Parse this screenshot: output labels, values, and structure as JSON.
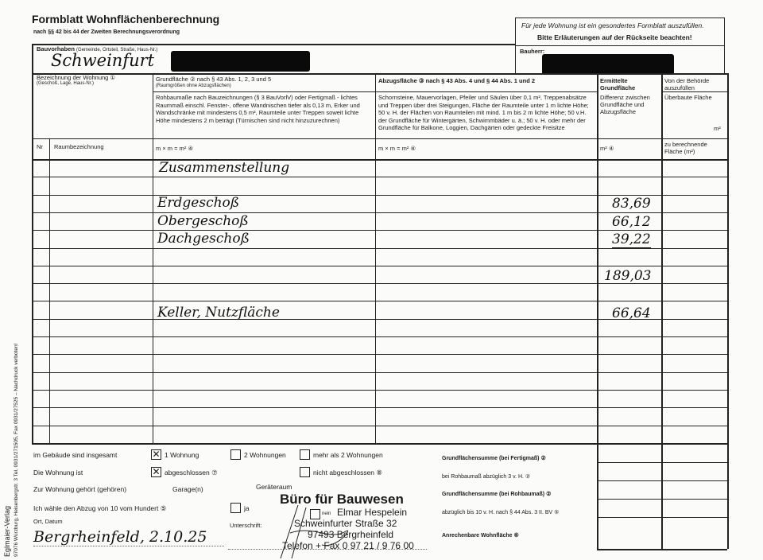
{
  "form": {
    "title": "Formblatt Wohnflächenberechnung",
    "subtitle": "nach §§ 42 bis 44 der Zweiten Berechnungsverordnung",
    "notice1": "Für jede Wohnung ist ein gesondertes Formblatt auszufüllen.",
    "notice2": "Bitte Erläuterungen auf der Rückseite beachten!",
    "bauvorhaben_label": "Bauvorhaben",
    "bauvorhaben_hint": "(Gemeinde, Ortsteil, Straße, Haus-Nr.)",
    "bauvorhaben_value": "Schweinfurt",
    "bauherr_label": "Bauherr:",
    "wohnung_label": "Bezeichnung der Wohnung ①",
    "wohnung_hint": "(Geschoß, Lage, Haus-Nr.)",
    "grundflaeche_label": "Grundfläche ② nach § 43 Abs. 1, 2, 3 und 5",
    "grundflaeche_hint": "(Raumgrößen ohne Abzugsflächen)",
    "rohbau_text": "Rohbaumaße nach Bauzeichnungen (§ 3 BauVorlV) oder Fertigmaß - lichtes Raummaß einschl. Fenster-, offene Wandnischen tiefer als 0,13 m, Erker und Wandschränke mit mindestens 0,5 m², Raumteile unter Treppen soweit lichte Höhe mindestens 2 m beträgt (Türnischen sind nicht hinzuzurechnen)",
    "abzug_label": "Abzugsfläche ③ nach § 43 Abs. 4 und § 44 Abs. 1 und 2",
    "abzug_text": "Schornsteine, Mauervorlagen, Pfeiler und Säulen über 0,1 m², Treppenabsätze und Treppen über drei Steigungen, Fläche der Raumteile unter 1 m lichte Höhe; 50 v. H. der Flächen von Raumteilen mit mind. 1 m bis 2 m lichte Höhe; 50 v.H. der Grundfläche für Wintergärten, Schwimmbäder u. ä.; 50 v. H. oder mehr der Grundfläche für Balkone, Loggien, Dachgärten oder gedeckte Freisitze",
    "ermittelt_label": "Ermittelte Grundfläche",
    "differenz_text": "Differenz zwischen Grundfläche und Abzugsfläche",
    "behoerde_label": "Von der Behörde auszufüllen",
    "ueberbaut_label": "Überbaute Fläche",
    "m2": "m²",
    "col_nr": "Nr",
    "col_raum": "Raumbezeichnung",
    "col_mxm1": "m × m = m² ④",
    "col_mxm2": "m × m = m² ④",
    "col_m2": "m² ④",
    "col_zu": "zu berechnende Fläche (m²)"
  },
  "rows": [
    {
      "name": "Zusammenstellung",
      "value": ""
    },
    {
      "name": "Erdgeschoß",
      "value": "83,69"
    },
    {
      "name": "Obergeschoß",
      "value": "66,12"
    },
    {
      "name": "Dachgeschoß",
      "value": "39,22"
    },
    {
      "name": "",
      "value": "189,03"
    },
    {
      "name": "Keller, Nutzfläche",
      "value": "66,64"
    }
  ],
  "bottom": {
    "gebaeude_label": "im Gebäude sind insgesamt",
    "opt1": "1 Wohnung",
    "opt2": "2 Wohnungen",
    "opt3": "mehr als 2 Wohnungen",
    "wohnung_ist": "Die Wohnung ist",
    "abgeschlossen": "abgeschlossen ⑦",
    "nicht_abgeschlossen": "nicht abgeschlossen ⑧",
    "gehoert": "Zur Wohnung gehört (gehören)",
    "garage": "Garage(n)",
    "geraeteraum": "Geräteraum",
    "abzug10": "Ich wähle den Abzug von 10 vom Hundert ⑤",
    "ja": "ja",
    "nein": "nein",
    "ort_datum": "Ort, Datum",
    "ort_value": "Bergrheinfeld, 2.10.25",
    "unterschrift": "Unterschrift:",
    "sum1": "Grundflächensumme (bei Fertigmaß) ②",
    "sum2": "bei Rohbaumaß abzüglich 3 v. H. ②",
    "sum3": "Grundflächensumme (bei Rohbaumaß) ②",
    "sum4": "abzüglich bis 10 v. H. nach § 44 Abs. 3 II. BV ⑤",
    "sum5": "Anrechenbare Wohnfläche ⑥"
  },
  "stamp": {
    "line1": "Büro für Bauwesen",
    "line2": "Elmar Hespelein",
    "line3": "Schweinfurter Straße 32",
    "line4": "97493 Bergrheinfeld",
    "line5": "Telefon + Fax 0 97 21 / 9 76 00"
  },
  "publisher": {
    "line1": "Eglmaier-Verlag",
    "line2": "97076 Würzburg, Heisenbergstr. 3  Tel. 0931/271505, Fax 0931/27525 – Nachdruck verboten!"
  },
  "checked": {
    "opt1": true,
    "abgeschlossen": true
  }
}
